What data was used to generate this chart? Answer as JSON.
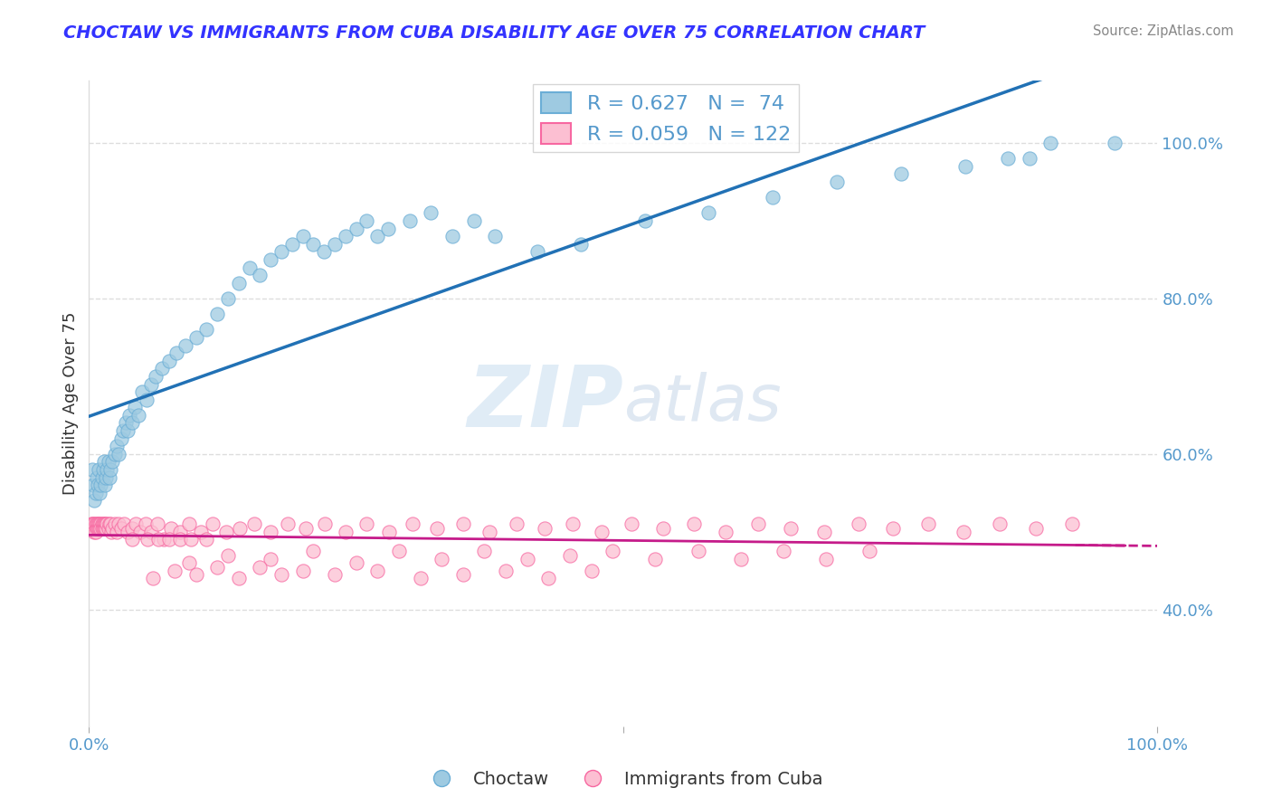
{
  "title": "CHOCTAW VS IMMIGRANTS FROM CUBA DISABILITY AGE OVER 75 CORRELATION CHART",
  "source": "Source: ZipAtlas.com",
  "ylabel": "Disability Age Over 75",
  "xlim": [
    0.0,
    1.0
  ],
  "ylim": [
    0.25,
    1.08
  ],
  "yticks": [
    0.4,
    0.6,
    0.8,
    1.0
  ],
  "ytick_labels": [
    "40.0%",
    "60.0%",
    "80.0%",
    "100.0%"
  ],
  "choctaw_R": 0.627,
  "choctaw_N": 74,
  "cuba_R": 0.059,
  "cuba_N": 122,
  "legend_labels": [
    "Choctaw",
    "Immigrants from Cuba"
  ],
  "blue_color": "#9ecae1",
  "blue_edge_color": "#6baed6",
  "blue_line_color": "#2171b5",
  "pink_color": "#fcbfd2",
  "pink_edge_color": "#f768a1",
  "pink_line_color": "#c51b8a",
  "watermark_zip": "ZIP",
  "watermark_atlas": "atlas",
  "title_color": "#3333ff",
  "source_color": "#888888",
  "ylabel_color": "#333333",
  "background_color": "#ffffff",
  "grid_color": "#dddddd",
  "tick_color": "#5599cc",
  "choctaw_x": [
    0.003,
    0.004,
    0.005,
    0.006,
    0.007,
    0.008,
    0.009,
    0.01,
    0.011,
    0.012,
    0.013,
    0.014,
    0.015,
    0.016,
    0.017,
    0.018,
    0.019,
    0.02,
    0.022,
    0.024,
    0.026,
    0.028,
    0.03,
    0.032,
    0.034,
    0.036,
    0.038,
    0.04,
    0.043,
    0.046,
    0.05,
    0.054,
    0.058,
    0.062,
    0.068,
    0.075,
    0.082,
    0.09,
    0.1,
    0.11,
    0.12,
    0.13,
    0.14,
    0.15,
    0.16,
    0.17,
    0.18,
    0.19,
    0.2,
    0.21,
    0.22,
    0.23,
    0.24,
    0.25,
    0.26,
    0.27,
    0.28,
    0.3,
    0.32,
    0.34,
    0.36,
    0.38,
    0.42,
    0.46,
    0.52,
    0.58,
    0.64,
    0.7,
    0.76,
    0.82,
    0.86,
    0.88,
    0.9,
    0.96
  ],
  "choctaw_y": [
    0.58,
    0.56,
    0.54,
    0.55,
    0.57,
    0.56,
    0.58,
    0.55,
    0.56,
    0.57,
    0.58,
    0.59,
    0.56,
    0.57,
    0.58,
    0.59,
    0.57,
    0.58,
    0.59,
    0.6,
    0.61,
    0.6,
    0.62,
    0.63,
    0.64,
    0.63,
    0.65,
    0.64,
    0.66,
    0.65,
    0.68,
    0.67,
    0.69,
    0.7,
    0.71,
    0.72,
    0.73,
    0.74,
    0.75,
    0.76,
    0.78,
    0.8,
    0.82,
    0.84,
    0.83,
    0.85,
    0.86,
    0.87,
    0.88,
    0.87,
    0.86,
    0.87,
    0.88,
    0.89,
    0.9,
    0.88,
    0.89,
    0.9,
    0.91,
    0.88,
    0.9,
    0.88,
    0.86,
    0.87,
    0.9,
    0.91,
    0.93,
    0.95,
    0.96,
    0.97,
    0.98,
    0.98,
    1.0,
    1.0
  ],
  "cuba_x": [
    0.002,
    0.003,
    0.004,
    0.005,
    0.005,
    0.006,
    0.006,
    0.007,
    0.007,
    0.008,
    0.008,
    0.009,
    0.009,
    0.01,
    0.01,
    0.011,
    0.011,
    0.012,
    0.012,
    0.013,
    0.013,
    0.014,
    0.014,
    0.015,
    0.015,
    0.016,
    0.016,
    0.017,
    0.018,
    0.019,
    0.02,
    0.021,
    0.022,
    0.024,
    0.026,
    0.028,
    0.03,
    0.033,
    0.036,
    0.04,
    0.044,
    0.048,
    0.053,
    0.058,
    0.064,
    0.07,
    0.077,
    0.085,
    0.094,
    0.105,
    0.116,
    0.128,
    0.141,
    0.155,
    0.17,
    0.186,
    0.203,
    0.221,
    0.24,
    0.26,
    0.281,
    0.303,
    0.326,
    0.35,
    0.375,
    0.4,
    0.426,
    0.453,
    0.48,
    0.508,
    0.537,
    0.566,
    0.596,
    0.626,
    0.657,
    0.688,
    0.72,
    0.752,
    0.785,
    0.818,
    0.852,
    0.886,
    0.92,
    0.094,
    0.13,
    0.17,
    0.21,
    0.25,
    0.29,
    0.33,
    0.37,
    0.41,
    0.45,
    0.49,
    0.53,
    0.57,
    0.61,
    0.65,
    0.69,
    0.73,
    0.06,
    0.08,
    0.1,
    0.12,
    0.14,
    0.16,
    0.18,
    0.2,
    0.23,
    0.27,
    0.31,
    0.35,
    0.39,
    0.43,
    0.47,
    0.04,
    0.055,
    0.065,
    0.075,
    0.085,
    0.095,
    0.11
  ],
  "cuba_y": [
    0.51,
    0.51,
    0.51,
    0.51,
    0.5,
    0.51,
    0.5,
    0.51,
    0.505,
    0.51,
    0.505,
    0.51,
    0.505,
    0.51,
    0.505,
    0.51,
    0.505,
    0.51,
    0.505,
    0.51,
    0.505,
    0.51,
    0.505,
    0.51,
    0.505,
    0.51,
    0.505,
    0.51,
    0.505,
    0.51,
    0.51,
    0.5,
    0.505,
    0.51,
    0.5,
    0.51,
    0.505,
    0.51,
    0.5,
    0.505,
    0.51,
    0.5,
    0.51,
    0.5,
    0.51,
    0.49,
    0.505,
    0.5,
    0.51,
    0.5,
    0.51,
    0.5,
    0.505,
    0.51,
    0.5,
    0.51,
    0.505,
    0.51,
    0.5,
    0.51,
    0.5,
    0.51,
    0.505,
    0.51,
    0.5,
    0.51,
    0.505,
    0.51,
    0.5,
    0.51,
    0.505,
    0.51,
    0.5,
    0.51,
    0.505,
    0.5,
    0.51,
    0.505,
    0.51,
    0.5,
    0.51,
    0.505,
    0.51,
    0.46,
    0.47,
    0.465,
    0.475,
    0.46,
    0.475,
    0.465,
    0.475,
    0.465,
    0.47,
    0.475,
    0.465,
    0.475,
    0.465,
    0.475,
    0.465,
    0.475,
    0.44,
    0.45,
    0.445,
    0.455,
    0.44,
    0.455,
    0.445,
    0.45,
    0.445,
    0.45,
    0.44,
    0.445,
    0.45,
    0.44,
    0.45,
    0.49,
    0.49,
    0.49,
    0.49,
    0.49,
    0.49,
    0.49
  ]
}
